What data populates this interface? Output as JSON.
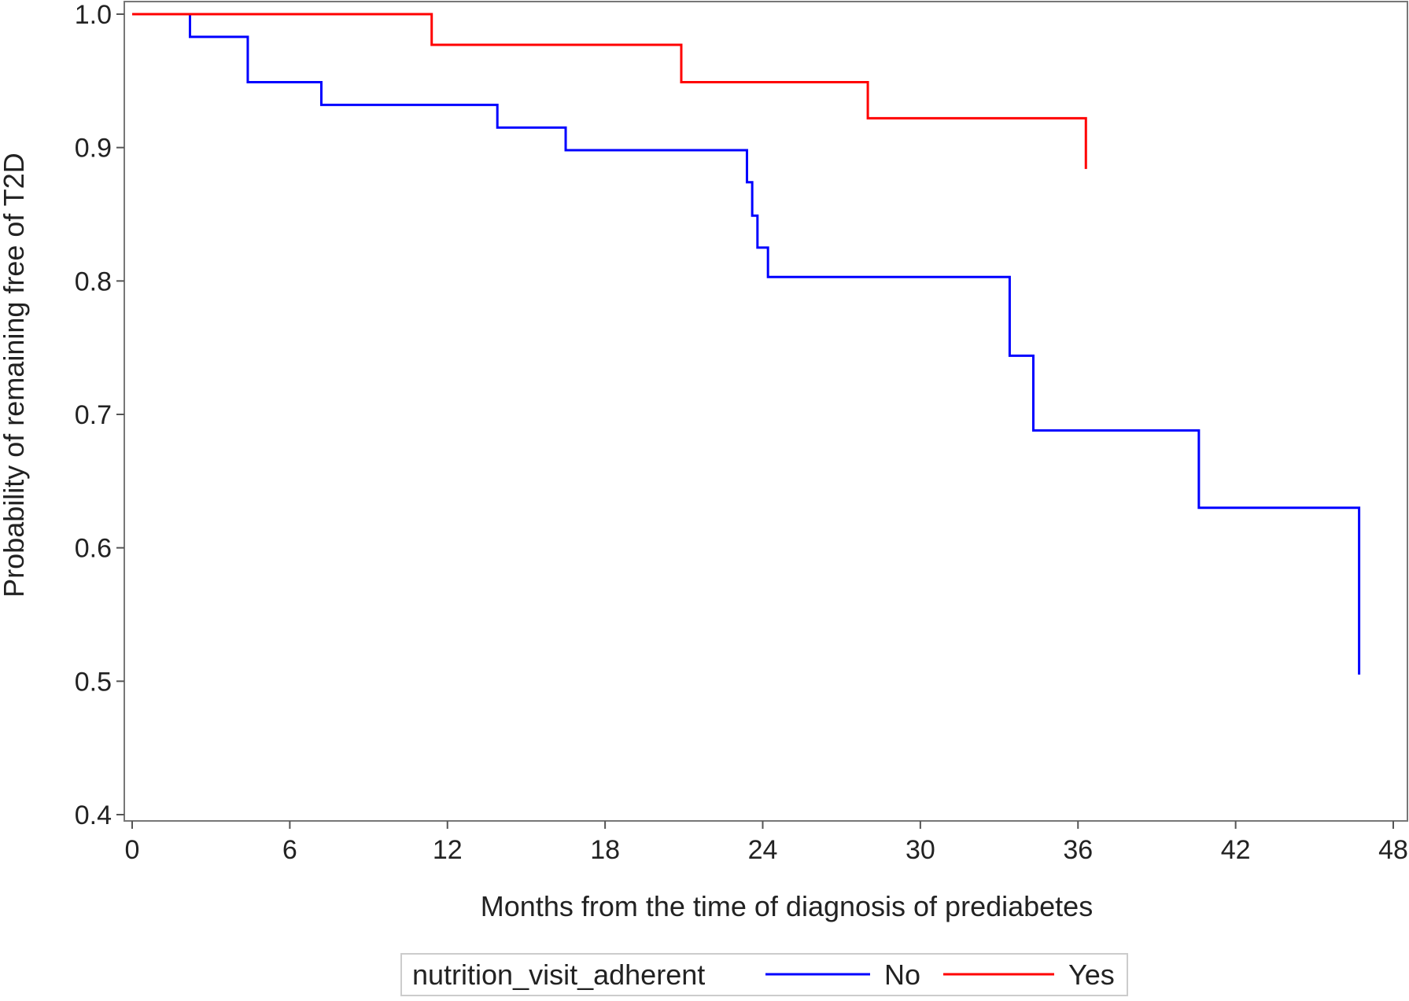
{
  "chart_data": {
    "type": "line",
    "subtype": "step",
    "title": "",
    "xlabel": "Months from the time of diagnosis of prediabetes",
    "ylabel": "Probability of remaining free of T2D",
    "xlim": [
      0,
      48
    ],
    "ylim": [
      0.4,
      1.0
    ],
    "xticks": [
      0,
      6,
      12,
      18,
      24,
      30,
      36,
      42,
      48
    ],
    "yticks": [
      0.4,
      0.5,
      0.6,
      0.7,
      0.8,
      0.9,
      1.0
    ],
    "xtick_labels": [
      "0",
      "6",
      "12",
      "18",
      "24",
      "30",
      "36",
      "42",
      "48"
    ],
    "ytick_labels": [
      "0.4",
      "0.5",
      "0.6",
      "0.7",
      "0.8",
      "0.9",
      "1.0"
    ],
    "grid": false,
    "legend": {
      "title": "nutrition_visit_adherent",
      "placement": "bottom-center",
      "entries": [
        "No",
        "Yes"
      ]
    },
    "series": [
      {
        "name": "No",
        "color": "#0000ff",
        "x": [
          0,
          2.2,
          4.4,
          7.2,
          13.9,
          16.5,
          23.4,
          23.6,
          23.8,
          24.2,
          25.4,
          33.4,
          34.3,
          40.6,
          46.7
        ],
        "y": [
          1.0,
          0.983,
          0.949,
          0.932,
          0.915,
          0.898,
          0.874,
          0.849,
          0.825,
          0.803,
          0.803,
          0.744,
          0.688,
          0.63,
          0.505
        ],
        "end_x": 46.7
      },
      {
        "name": "Yes",
        "color": "#ff0000",
        "x": [
          0,
          11.4,
          20.9,
          28.0,
          36.3
        ],
        "y": [
          1.0,
          0.977,
          0.949,
          0.922,
          0.884
        ],
        "end_x": 36.3
      }
    ]
  }
}
